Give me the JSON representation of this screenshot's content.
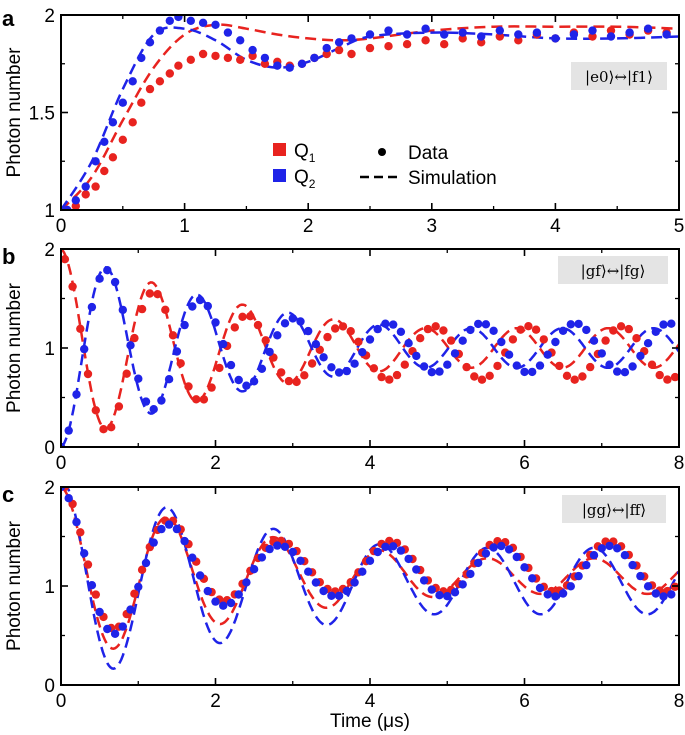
{
  "chart_data": [
    {
      "panel": "a",
      "type": "scatter",
      "ylabel": "Photon number",
      "xlabel": "",
      "xlim": [
        0,
        5
      ],
      "ylim": [
        1,
        2
      ],
      "xticks": [
        0,
        1,
        2,
        3,
        4,
        5
      ],
      "yticks": [
        1,
        1.5,
        2
      ],
      "ytick_labels": [
        "1",
        "1.5",
        "2"
      ],
      "annotation": "|e0⟩↔|f1⟩",
      "legend": {
        "q1": "Q",
        "q1_sub": "1",
        "q2": "Q",
        "q2_sub": "2",
        "data": "Data",
        "sim": "Simulation"
      },
      "colors": {
        "q1": "#e8231f",
        "q2": "#1f23e8"
      },
      "series": [
        {
          "name": "Q1 Simulation",
          "style": "dashed",
          "color": "#e8231f",
          "x": [
            0,
            0.25,
            0.5,
            0.75,
            1.0,
            1.25,
            1.5,
            1.75,
            2.0,
            2.25,
            2.5,
            3.0,
            3.5,
            4.0,
            4.5,
            5.0
          ],
          "y": [
            1.0,
            1.17,
            1.46,
            1.73,
            1.9,
            1.95,
            1.93,
            1.9,
            1.88,
            1.87,
            1.88,
            1.92,
            1.94,
            1.94,
            1.94,
            1.93
          ]
        },
        {
          "name": "Q2 Simulation",
          "style": "dashed",
          "color": "#1f23e8",
          "x": [
            0,
            0.25,
            0.5,
            0.75,
            1.0,
            1.25,
            1.5,
            1.75,
            2.0,
            2.25,
            2.5,
            3.0,
            3.5,
            4.0,
            4.5,
            5.0
          ],
          "y": [
            1.0,
            1.25,
            1.62,
            1.9,
            1.93,
            1.87,
            1.77,
            1.73,
            1.76,
            1.83,
            1.89,
            1.91,
            1.9,
            1.88,
            1.88,
            1.89
          ]
        },
        {
          "name": "Q1 Data",
          "style": "markers",
          "color": "#e8231f",
          "x": [
            0.05,
            0.12,
            0.2,
            0.28,
            0.35,
            0.42,
            0.5,
            0.58,
            0.65,
            0.72,
            0.8,
            0.88,
            0.95,
            1.05,
            1.15,
            1.25,
            1.35,
            1.45,
            1.55,
            1.65,
            1.75,
            1.85,
            1.95,
            2.05,
            2.15,
            2.25,
            2.35,
            2.5,
            2.65,
            2.8,
            2.95,
            3.1,
            3.25,
            3.4,
            3.55,
            3.7,
            3.85,
            4.0,
            4.15,
            4.3,
            4.45,
            4.6,
            4.75,
            4.9
          ],
          "y": [
            1.0,
            1.02,
            1.08,
            1.12,
            1.2,
            1.27,
            1.36,
            1.45,
            1.55,
            1.62,
            1.66,
            1.7,
            1.74,
            1.77,
            1.8,
            1.79,
            1.78,
            1.77,
            1.79,
            1.75,
            1.76,
            1.74,
            1.75,
            1.78,
            1.8,
            1.82,
            1.8,
            1.83,
            1.84,
            1.85,
            1.87,
            1.85,
            1.88,
            1.86,
            1.89,
            1.87,
            1.9,
            1.88,
            1.91,
            1.89,
            1.92,
            1.9,
            1.92,
            1.91
          ]
        },
        {
          "name": "Q2 Data",
          "style": "markers",
          "color": "#1f23e8",
          "x": [
            0.05,
            0.12,
            0.2,
            0.28,
            0.35,
            0.42,
            0.5,
            0.58,
            0.65,
            0.72,
            0.8,
            0.88,
            0.95,
            1.05,
            1.15,
            1.25,
            1.35,
            1.45,
            1.55,
            1.65,
            1.75,
            1.85,
            1.95,
            2.05,
            2.15,
            2.25,
            2.35,
            2.5,
            2.65,
            2.8,
            2.95,
            3.1,
            3.25,
            3.4,
            3.55,
            3.7,
            3.85,
            4.0,
            4.15,
            4.3,
            4.45,
            4.6,
            4.75,
            4.9
          ],
          "y": [
            1.0,
            1.05,
            1.12,
            1.25,
            1.35,
            1.45,
            1.55,
            1.66,
            1.78,
            1.86,
            1.92,
            1.97,
            1.99,
            1.97,
            1.96,
            1.95,
            1.91,
            1.87,
            1.82,
            1.78,
            1.74,
            1.73,
            1.75,
            1.78,
            1.83,
            1.86,
            1.88,
            1.9,
            1.92,
            1.9,
            1.93,
            1.9,
            1.91,
            1.89,
            1.92,
            1.9,
            1.91,
            1.88,
            1.9,
            1.92,
            1.89,
            1.91,
            1.93,
            1.9
          ]
        }
      ]
    },
    {
      "panel": "b",
      "type": "scatter",
      "ylabel": "Photon number",
      "xlabel": "",
      "xlim": [
        0,
        8
      ],
      "ylim": [
        0,
        2
      ],
      "xticks": [
        0,
        2,
        4,
        6,
        8
      ],
      "yticks": [
        0,
        1,
        2
      ],
      "ytick_labels": [
        "0",
        "1",
        "2"
      ],
      "annotation": "|gf⟩↔|fg⟩",
      "colors": {
        "q1": "#e8231f",
        "q2": "#1f23e8"
      },
      "model": {
        "q1_sim": {
          "mean": 1.0,
          "amp": 1.0,
          "decay": 0.35,
          "floor": 0.2,
          "period": 1.18,
          "phase": 0.0
        },
        "q2_sim": {
          "mean": 1.0,
          "amp": 1.0,
          "decay": 0.35,
          "floor": 0.2,
          "period": 1.18,
          "phase": 3.14159
        },
        "q1_data": {
          "mean": 0.95,
          "amp": 1.0,
          "decay": 0.4,
          "floor": 0.27,
          "period": 1.21,
          "phase": 0.0,
          "dx": 0.1,
          "x0": 0.05
        },
        "q2_data": {
          "mean": 1.0,
          "amp": 1.0,
          "decay": 0.4,
          "floor": 0.25,
          "period": 1.21,
          "phase": 3.14159,
          "dx": 0.1,
          "x0": 0.0
        }
      }
    },
    {
      "panel": "c",
      "type": "scatter",
      "ylabel": "Photon number",
      "xlabel": "Time (μs)",
      "xlim": [
        0,
        8
      ],
      "ylim": [
        0,
        2
      ],
      "xticks": [
        0,
        2,
        4,
        6,
        8
      ],
      "yticks": [
        0,
        1,
        2
      ],
      "ytick_labels": [
        "0",
        "1",
        "2"
      ],
      "annotation": "|gg⟩↔|ff⟩",
      "colors": {
        "q1": "#e8231f",
        "q2": "#1f23e8"
      },
      "model": {
        "q1_sim": {
          "mean": 1.1,
          "amp": 0.9,
          "decay": 0.3,
          "floor": 0.2,
          "period": 1.38,
          "phase": 0.0,
          "start": 0.0
        },
        "q2_sim": {
          "mean": 1.05,
          "amp": 1.05,
          "decay": 0.25,
          "floor": 0.32,
          "period": 1.38,
          "phase": 0.0,
          "start": 0.0
        },
        "q1_data": {
          "mean": 1.2,
          "amp": 0.85,
          "decay": 0.42,
          "floor": 0.3,
          "period": 1.42,
          "phase": 0.0,
          "dx": 0.1,
          "x0": 0.05
        },
        "q2_data": {
          "mean": 1.15,
          "amp": 0.85,
          "decay": 0.42,
          "floor": 0.3,
          "period": 1.42,
          "phase": 0.0,
          "dx": 0.1,
          "x0": 0.0
        }
      }
    }
  ]
}
